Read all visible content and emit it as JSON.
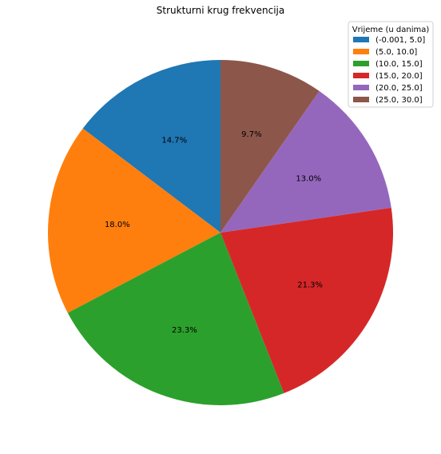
{
  "chart_data": {
    "type": "pie",
    "title": "Strukturni krug frekvencija",
    "legend_title": "Vrijeme (u danima)",
    "legend_position": "top-right",
    "start_angle_deg": 90,
    "direction": "counterclockwise",
    "slices": [
      {
        "label": "(-0.001, 5.0]",
        "value": 14.7,
        "value_label": "14.7%",
        "color": "#1f77b4"
      },
      {
        "label": "(5.0, 10.0]",
        "value": 18.0,
        "value_label": "18.0%",
        "color": "#ff7f0e"
      },
      {
        "label": "(10.0, 15.0]",
        "value": 23.3,
        "value_label": "23.3%",
        "color": "#2ca02c"
      },
      {
        "label": "(15.0, 20.0]",
        "value": 21.3,
        "value_label": "21.3%",
        "color": "#d62728"
      },
      {
        "label": "(20.0, 25.0]",
        "value": 13.0,
        "value_label": "13.0%",
        "color": "#9467bd"
      },
      {
        "label": "(25.0, 30.0]",
        "value": 9.7,
        "value_label": "9.7%",
        "color": "#8c564b"
      }
    ]
  }
}
